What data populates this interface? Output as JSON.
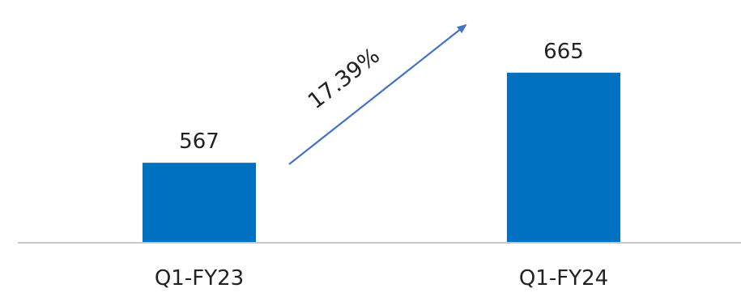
{
  "chart_data": {
    "type": "bar",
    "categories": [
      "Q1-FY23",
      "Q1-FY24"
    ],
    "values": [
      567,
      665
    ],
    "data_labels": [
      "567",
      "665"
    ],
    "annotation": {
      "text": "17.39%",
      "kind": "growth-arrow",
      "from_category": "Q1-FY23",
      "to_category": "Q1-FY24"
    },
    "ylim": [
      480,
      700
    ],
    "grid": false,
    "legend": "none",
    "colors": {
      "bar": "#0070C0",
      "arrow": "#4472C4",
      "axis": "#c8c8c8",
      "text": "#222222"
    }
  }
}
